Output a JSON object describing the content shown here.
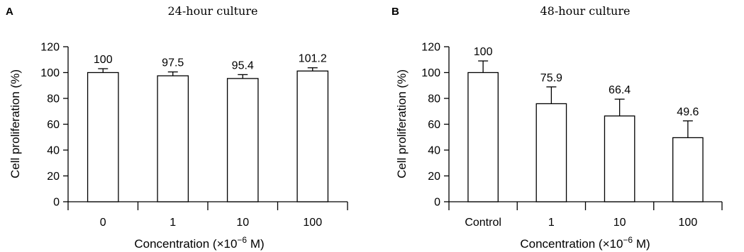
{
  "chart_data": [
    {
      "panel": "A",
      "type": "bar",
      "title": "24-hour culture",
      "xlabel": "Concentration (×10",
      "xlabel_exp": "−6",
      "xlabel_suffix": " M)",
      "ylabel": "Cell proliferation (%)",
      "ylim": [
        0,
        120
      ],
      "yticks": [
        0,
        20,
        40,
        60,
        80,
        100,
        120
      ],
      "categories": [
        "0",
        "1",
        "10",
        "100"
      ],
      "values": [
        100,
        97.5,
        95.4,
        101.2
      ],
      "errors": [
        3,
        3,
        3,
        2.5
      ],
      "labels": [
        "100",
        "97.5",
        "95.4",
        "101.2"
      ]
    },
    {
      "panel": "B",
      "type": "bar",
      "title": "48-hour culture",
      "xlabel": "Concentration (×10",
      "xlabel_exp": "−6",
      "xlabel_suffix": " M)",
      "ylabel": "Cell proliferation (%)",
      "ylim": [
        0,
        120
      ],
      "yticks": [
        0,
        20,
        40,
        60,
        80,
        100,
        120
      ],
      "categories": [
        "Control",
        "1",
        "10",
        "100"
      ],
      "values": [
        100,
        75.9,
        66.4,
        49.6
      ],
      "errors": [
        9,
        13,
        13,
        13
      ],
      "labels": [
        "100",
        "75.9",
        "66.4",
        "49.6"
      ]
    }
  ]
}
